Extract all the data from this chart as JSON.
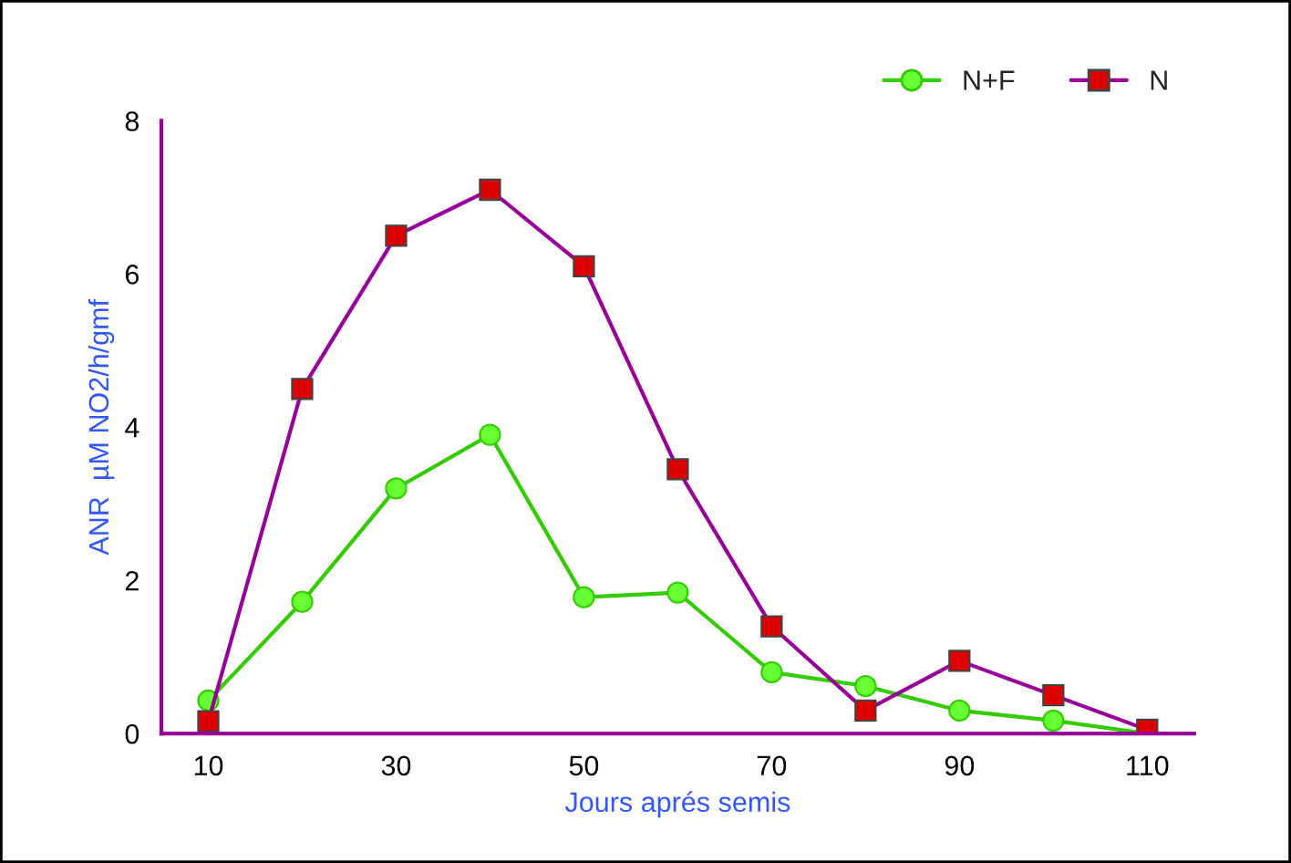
{
  "chart_data": {
    "type": "line",
    "xlabel": "Jours aprés semis",
    "ylabel": "ANR  µM NO2/h/gmf",
    "x": [
      10,
      20,
      30,
      40,
      50,
      60,
      70,
      80,
      90,
      100,
      110
    ],
    "series": [
      {
        "name": "N+F",
        "color": "#33cc00",
        "marker": "circle",
        "values": [
          0.43,
          1.72,
          3.2,
          3.9,
          1.78,
          1.84,
          0.8,
          0.62,
          0.3,
          0.17,
          0
        ]
      },
      {
        "name": "N",
        "color": "#990099",
        "marker": "square",
        "values": [
          0.16,
          4.5,
          6.5,
          7.1,
          6.1,
          3.45,
          1.4,
          0.3,
          0.95,
          0.5,
          0.05
        ]
      }
    ],
    "xlim": [
      5,
      115
    ],
    "xticks": [
      10,
      30,
      50,
      70,
      90,
      110
    ],
    "ylim": [
      0,
      8
    ],
    "yticks": [
      0,
      2,
      4,
      6,
      8
    ],
    "grid": false,
    "legend": "top right",
    "line_style": "solid"
  }
}
